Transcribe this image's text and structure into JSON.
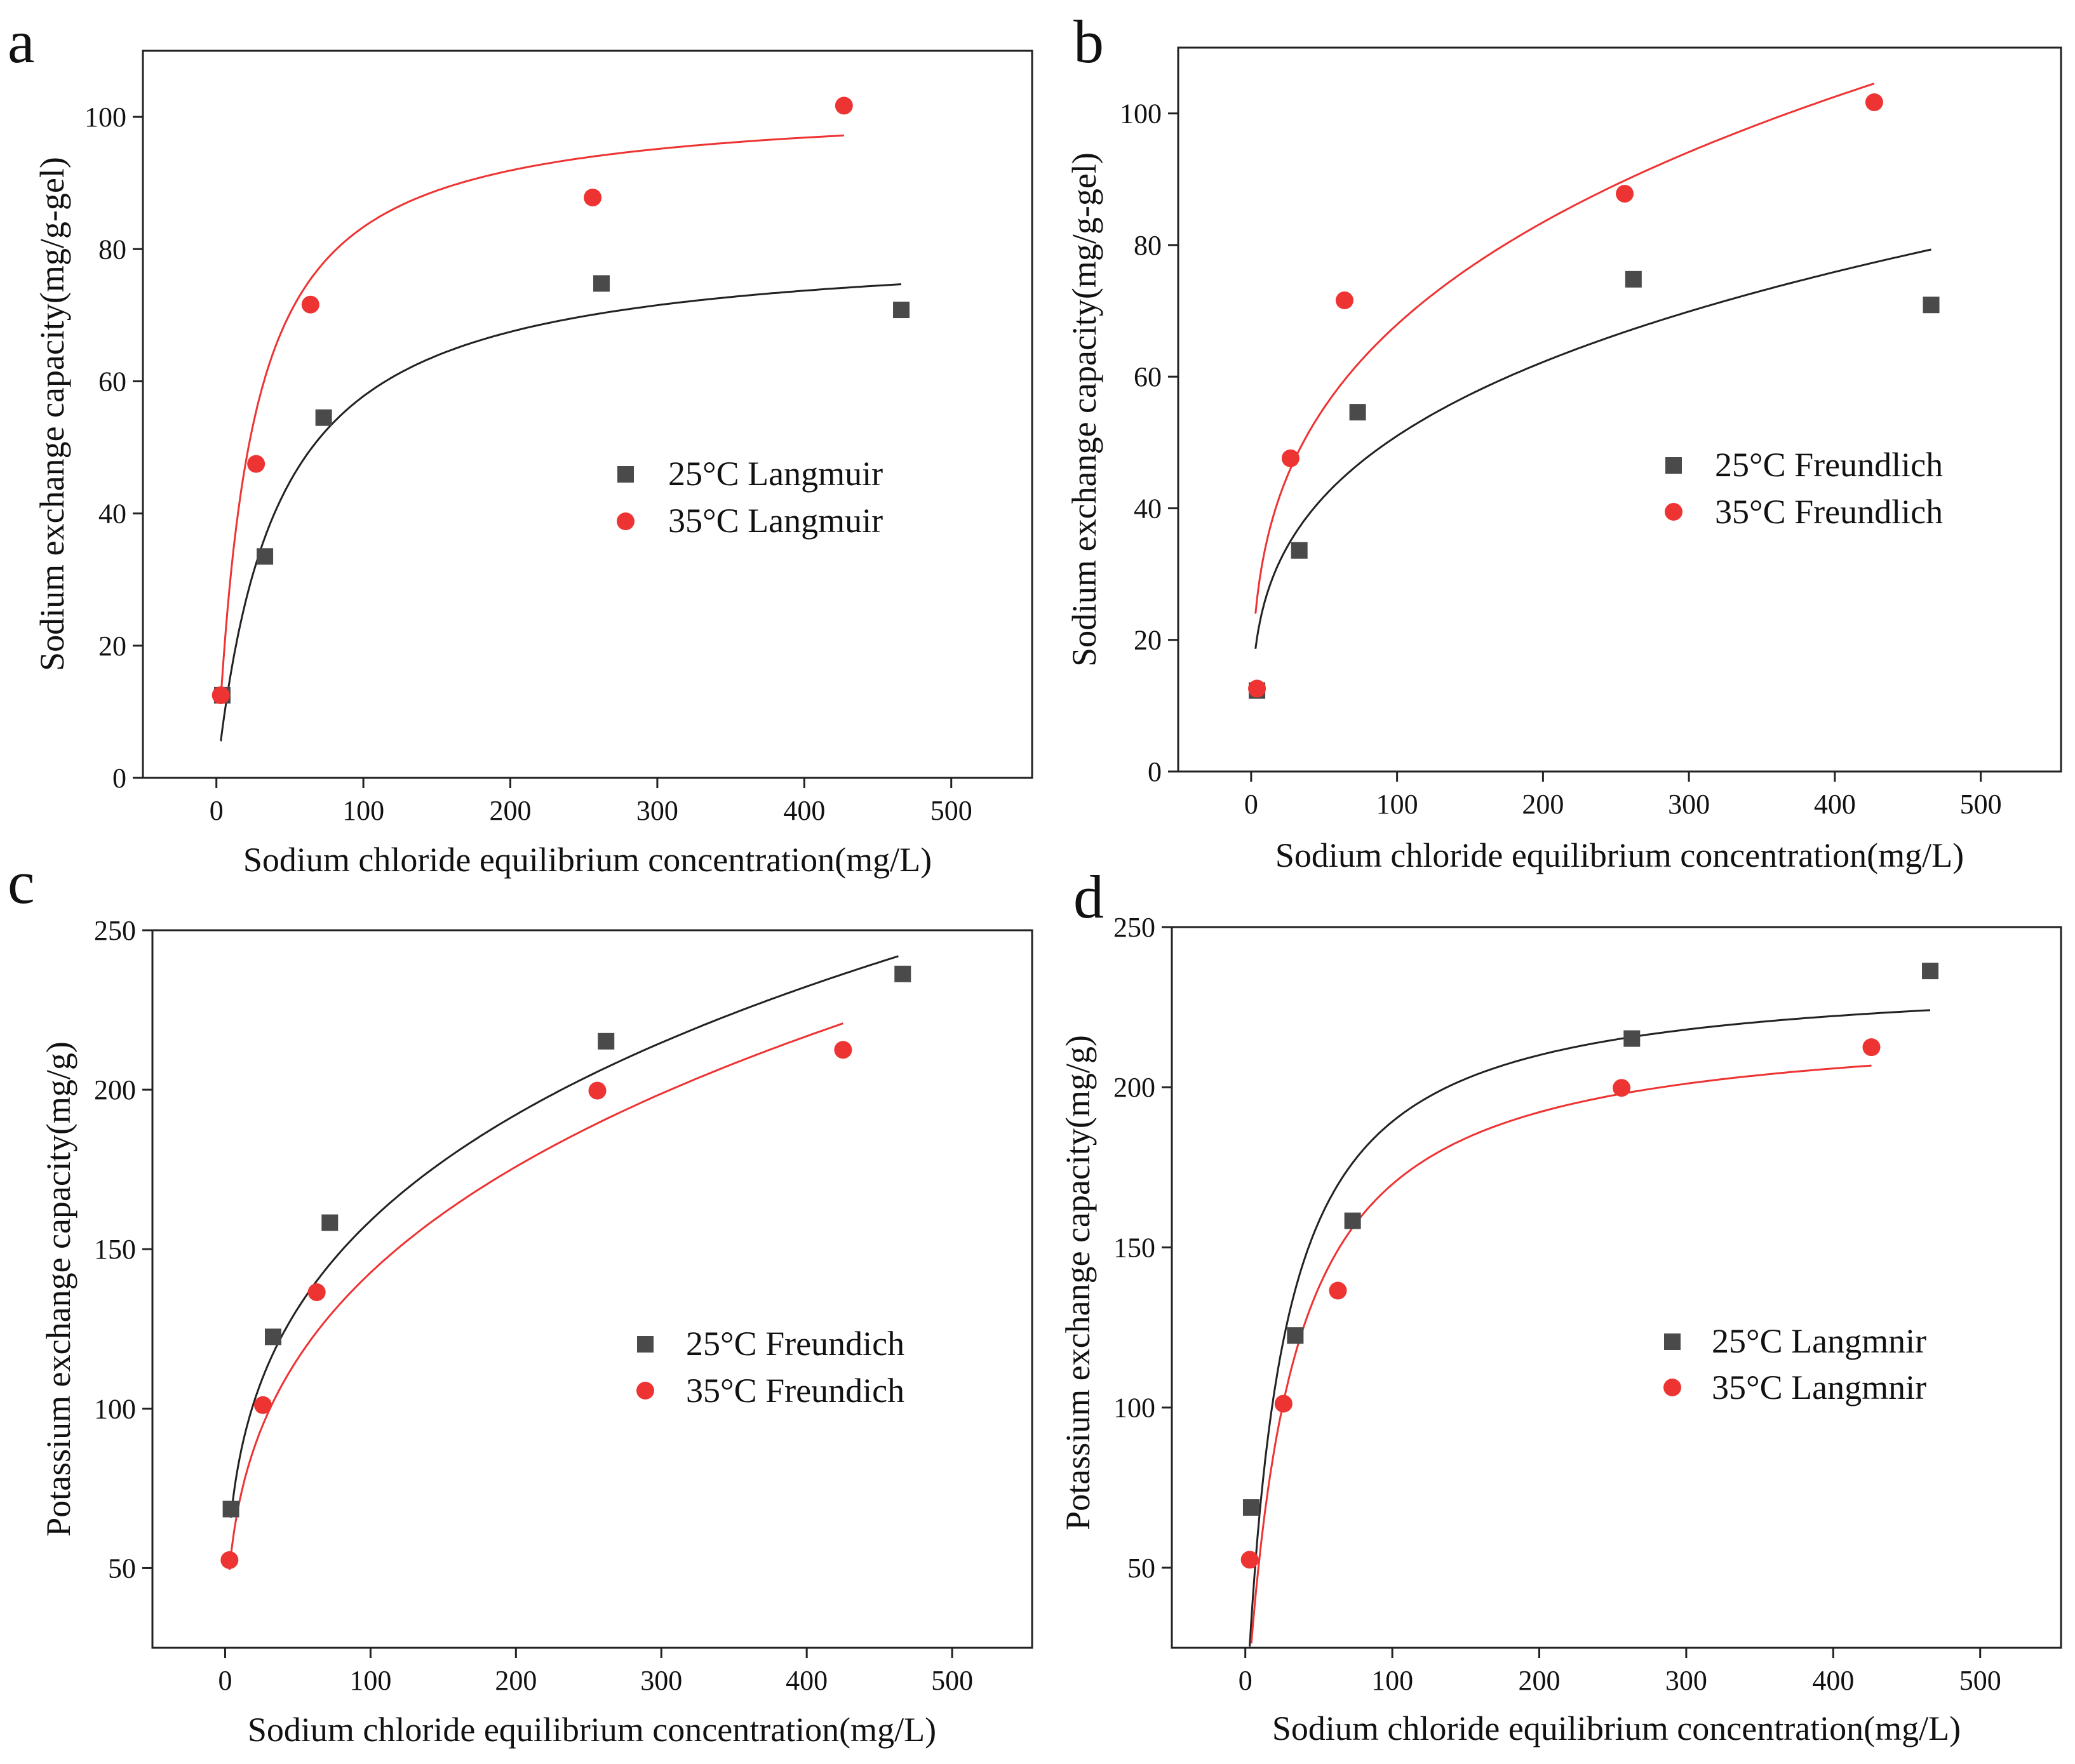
{
  "figure": {
    "panels": [
      {
        "letter": "a",
        "xlabel": "Sodium chloride equilibrium concentration(mg/L)",
        "ylabel": "Sodium exchange capacity(mg/g-gel)"
      },
      {
        "letter": "b",
        "xlabel": "Sodium chloride equilibrium concentration(mg/L)",
        "ylabel": "Sodium exchange capacity(mg/g-gel)"
      },
      {
        "letter": "c",
        "xlabel": "Sodium chloride equilibrium concentration(mg/L)",
        "ylabel": "Potassium exchange capacity(mg/g)"
      },
      {
        "letter": "d",
        "xlabel": "Sodium chloride equilibrium concentration(mg/L)",
        "ylabel": "Potassium exchange capacity(mg/g)"
      }
    ]
  },
  "colors": {
    "series_25C": "#4a4a4a",
    "series_35C": "#ee3333",
    "fit_25C": "#222222",
    "fit_35C": "#ee3333"
  },
  "chart_data": [
    {
      "type": "scatter",
      "panel": "a",
      "xlabel": "Sodium chloride equilibrium concentration(mg/L)",
      "ylabel": "Sodium exchange capacity(mg/g-gel)",
      "xlim": [
        -50,
        555
      ],
      "ylim": [
        0,
        110
      ],
      "xticks": [
        0,
        100,
        200,
        300,
        400,
        500
      ],
      "yticks": [
        0,
        20,
        40,
        60,
        80,
        100
      ],
      "legend_position": "middle-right",
      "series": [
        {
          "name": "25°C Langmuir",
          "marker": "square",
          "x": [
            4,
            33,
            73,
            262,
            466
          ],
          "y": [
            12.5,
            33.5,
            54.5,
            74.8,
            70.8
          ],
          "fit": {
            "model": "langmuir",
            "qmax": 81.2,
            "K": 0.0246,
            "xrange": [
              3,
              466
            ]
          }
        },
        {
          "name": "35°C Langmuir",
          "marker": "circle",
          "x": [
            3,
            27,
            64,
            256,
            427
          ],
          "y": [
            12.5,
            47.5,
            71.6,
            87.8,
            101.7
          ],
          "fit": {
            "model": "langmuir",
            "qmax": 102.4,
            "K": 0.0437,
            "xrange": [
              3,
              427
            ]
          }
        }
      ]
    },
    {
      "type": "scatter",
      "panel": "b",
      "xlabel": "Sodium chloride equilibrium concentration(mg/L)",
      "ylabel": "Sodium exchange capacity(mg/g-gel)",
      "xlim": [
        -50,
        555
      ],
      "ylim": [
        0,
        110
      ],
      "xticks": [
        0,
        100,
        200,
        300,
        400,
        500
      ],
      "yticks": [
        0,
        20,
        40,
        60,
        80,
        100
      ],
      "legend_position": "middle-right",
      "series": [
        {
          "name": "25°C Freundlich",
          "marker": "square",
          "x": [
            4,
            33,
            73,
            262,
            466
          ],
          "y": [
            12.3,
            33.6,
            54.6,
            74.8,
            70.9
          ],
          "fit": {
            "model": "freundlich",
            "Kf": 13.6,
            "n": 0.287,
            "xrange": [
              3,
              466
            ]
          }
        },
        {
          "name": "35°C Freundlich",
          "marker": "circle",
          "x": [
            4,
            27,
            64,
            256,
            427
          ],
          "y": [
            12.6,
            47.6,
            71.6,
            87.8,
            101.7
          ],
          "fit": {
            "model": "freundlich",
            "Kf": 17.3,
            "n": 0.297,
            "xrange": [
              3,
              427
            ]
          }
        }
      ]
    },
    {
      "type": "scatter",
      "panel": "c",
      "xlabel": "Sodium chloride equilibrium concentration(mg/L)",
      "ylabel": "Potassium exchange capacity(mg/g)",
      "xlim": [
        -50,
        555
      ],
      "ylim": [
        25,
        250
      ],
      "xticks": [
        0,
        100,
        200,
        300,
        400,
        500
      ],
      "yticks": [
        50,
        100,
        150,
        200,
        250
      ],
      "legend_position": "middle-right",
      "series": [
        {
          "name": "25°C Freundich",
          "marker": "square",
          "x": [
            4,
            33,
            72,
            262,
            466
          ],
          "y": [
            68.5,
            122.5,
            158.3,
            215.2,
            236.3
          ],
          "fit": {
            "model": "freundlich",
            "Kf": 45.0,
            "n": 0.274,
            "xrange": [
              4,
              463
            ]
          }
        },
        {
          "name": "35°C Freundich",
          "marker": "circle",
          "x": [
            3,
            26,
            63,
            256,
            425
          ],
          "y": [
            52.5,
            101.1,
            136.5,
            199.7,
            212.5
          ],
          "fit": {
            "model": "freundlich",
            "Kf": 35.5,
            "n": 0.302,
            "xrange": [
              3,
              425
            ]
          }
        }
      ]
    },
    {
      "type": "scatter",
      "panel": "d",
      "xlabel": "Sodium chloride equilibrium concentration(mg/L)",
      "ylabel": "Potassium exchange capacity(mg/g)",
      "xlim": [
        -50,
        555
      ],
      "ylim": [
        25,
        250
      ],
      "xticks": [
        0,
        100,
        200,
        300,
        400,
        500
      ],
      "yticks": [
        50,
        100,
        150,
        200,
        250
      ],
      "legend_position": "middle-right",
      "series": [
        {
          "name": "25°C Langmnir",
          "marker": "square",
          "x": [
            4,
            34,
            73,
            263,
            466
          ],
          "y": [
            68.8,
            122.5,
            158.3,
            215.2,
            236.3
          ],
          "fit": {
            "model": "langmuir",
            "qmax": 235.9,
            "K": 0.0406,
            "xrange": [
              2,
              466
            ]
          }
        },
        {
          "name": "35°C Langmnir",
          "marker": "circle",
          "x": [
            3,
            26,
            63,
            256,
            426
          ],
          "y": [
            52.5,
            101.2,
            136.5,
            199.8,
            212.5
          ],
          "fit": {
            "model": "langmuir",
            "qmax": 221.6,
            "K": 0.0327,
            "xrange": [
              2,
              426
            ]
          }
        }
      ]
    }
  ]
}
